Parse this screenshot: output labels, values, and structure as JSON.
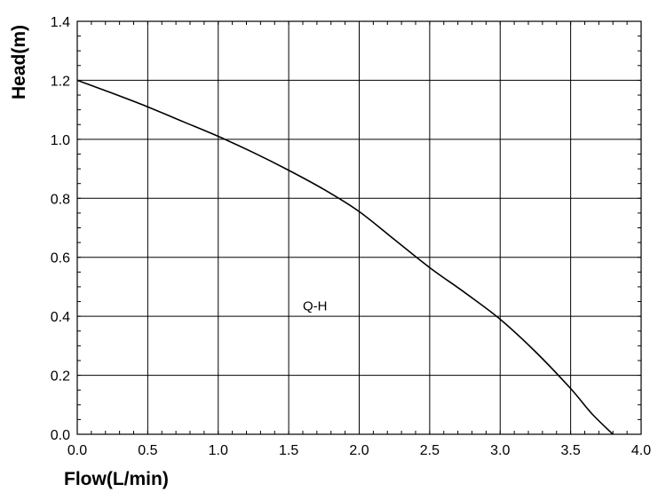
{
  "chart_data": {
    "type": "line",
    "title": "",
    "xlabel": "Flow(L/min)",
    "ylabel": "Head(m)",
    "xlim": [
      0.0,
      4.0
    ],
    "ylim": [
      0.0,
      1.4
    ],
    "grid": true,
    "x_ticks": [
      "0.0",
      "0.5",
      "1.0",
      "1.5",
      "2.0",
      "2.5",
      "3.0",
      "3.5",
      "4.0"
    ],
    "y_ticks": [
      "0.0",
      "0.2",
      "0.4",
      "0.6",
      "0.8",
      "1.0",
      "1.2",
      "1.4"
    ],
    "annotation": {
      "text": "Q-H",
      "x": 1.6,
      "y": 0.42
    },
    "series": [
      {
        "x": [
          0.0,
          0.25,
          0.5,
          0.75,
          1.0,
          1.25,
          1.5,
          1.75,
          2.0,
          2.25,
          2.5,
          2.75,
          3.0,
          3.25,
          3.5,
          3.65,
          3.8
        ],
        "values": [
          1.2,
          1.156,
          1.11,
          1.06,
          1.01,
          0.955,
          0.895,
          0.83,
          0.755,
          0.66,
          0.565,
          0.48,
          0.39,
          0.28,
          0.155,
          0.07,
          0.0
        ]
      }
    ]
  }
}
